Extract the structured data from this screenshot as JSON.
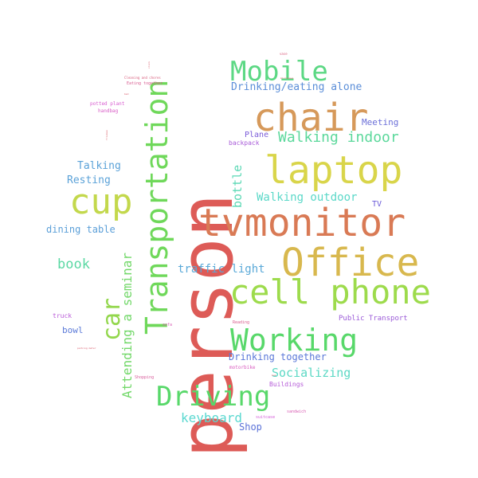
{
  "words": [
    {
      "text": "person",
      "color": "#dd5b57",
      "vertical": true
    },
    {
      "text": "tvmonitor",
      "color": "#d97a55"
    },
    {
      "text": "Office",
      "color": "#d8b84e"
    },
    {
      "text": "laptop",
      "color": "#d9d54a"
    },
    {
      "text": "chair",
      "color": "#d6995a"
    },
    {
      "text": "cell phone",
      "color": "#9ddb4c"
    },
    {
      "text": "Transportation",
      "color": "#6fd85a",
      "vertical": true
    },
    {
      "text": "cup",
      "color": "#c3d84c"
    },
    {
      "text": "Mobile",
      "color": "#5cd884"
    },
    {
      "text": "Working",
      "color": "#58d86a"
    },
    {
      "text": "Driving",
      "color": "#58d86a"
    },
    {
      "text": "car",
      "color": "#93d74d",
      "vertical": true
    },
    {
      "text": "Walking indoor",
      "color": "#5bd89b"
    },
    {
      "text": "Drinking/eating alone",
      "color": "#5b8ed8"
    },
    {
      "text": "Attending a seminar",
      "color": "#73d86a",
      "vertical": true
    },
    {
      "text": "Socializing",
      "color": "#5bd8c4"
    },
    {
      "text": "traffic light",
      "color": "#5aa9d8"
    },
    {
      "text": "Walking outdoor",
      "color": "#5ad8c8"
    },
    {
      "text": "keyboard",
      "color": "#5ad8d0"
    },
    {
      "text": "book",
      "color": "#5bd8a4"
    },
    {
      "text": "bottle",
      "color": "#5ad8b4",
      "vertical": true
    },
    {
      "text": "Drinking together",
      "color": "#5b78d8"
    },
    {
      "text": "dining table",
      "color": "#5b9fd8"
    },
    {
      "text": "Talking",
      "color": "#5ba2d8"
    },
    {
      "text": "Resting",
      "color": "#5ba2d8"
    },
    {
      "text": "Meeting",
      "color": "#6b6fd8"
    },
    {
      "text": "Plane",
      "color": "#7a5bd8"
    },
    {
      "text": "Shop",
      "color": "#5b72d8"
    },
    {
      "text": "bowl",
      "color": "#5b7ad8"
    },
    {
      "text": "Public Transport",
      "color": "#9b5bd8"
    },
    {
      "text": "TV",
      "color": "#6a5bd8"
    },
    {
      "text": "Buildings",
      "color": "#b55bd8"
    },
    {
      "text": "backpack",
      "color": "#a85bd8"
    },
    {
      "text": "truck",
      "color": "#b95bd8"
    },
    {
      "text": "potted plant",
      "color": "#d85bd0"
    },
    {
      "text": "handbag",
      "color": "#d85bc6"
    },
    {
      "text": "motorbike",
      "color": "#d85bbf"
    },
    {
      "text": "suitcase",
      "color": "#d35bd8"
    },
    {
      "text": "sandwich",
      "color": "#d85bb2"
    },
    {
      "text": "Shopping",
      "color": "#d85b9a"
    },
    {
      "text": "Reading",
      "color": "#d85b8c"
    },
    {
      "text": "sofa",
      "color": "#d85bb5"
    },
    {
      "text": "Eating together",
      "color": "#d85b90"
    },
    {
      "text": "Cleaning and chores",
      "color": "#d85b7a"
    },
    {
      "text": "vase",
      "color": "#d85b7a"
    },
    {
      "text": "parking meter",
      "color": "#d85b6c"
    },
    {
      "text": "bed",
      "color": "#d85b6a"
    },
    {
      "text": "clock",
      "color": "#d85b6a",
      "vertical": true
    },
    {
      "text": "frisbee",
      "color": "#d85b64",
      "vertical": true
    },
    {
      "text": "microwave",
      "color": "#d85b64"
    },
    {
      "text": "bus",
      "color": "#d85b64"
    }
  ]
}
